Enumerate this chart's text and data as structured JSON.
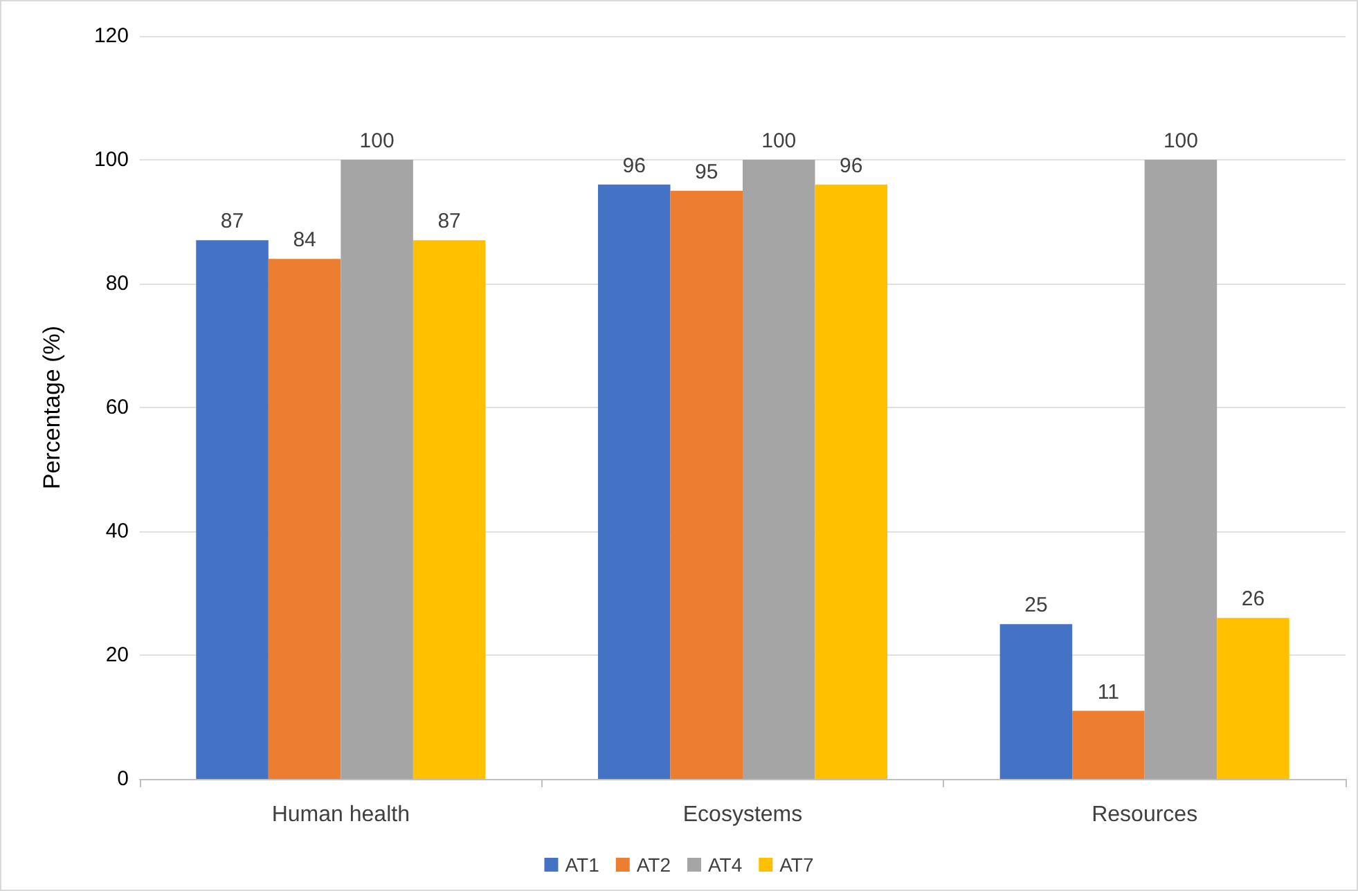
{
  "chart_data": {
    "type": "bar",
    "ylabel": "Percentage (%)",
    "categories": [
      "Human health",
      "Ecosystems",
      "Resources"
    ],
    "series": [
      {
        "name": "AT1",
        "color": "#4472c4",
        "values": [
          87,
          96,
          25
        ]
      },
      {
        "name": "AT2",
        "color": "#ed7d31",
        "values": [
          84,
          95,
          11
        ]
      },
      {
        "name": "AT4",
        "color": "#a5a5a5",
        "values": [
          100,
          100,
          100
        ]
      },
      {
        "name": "AT7",
        "color": "#ffc000",
        "values": [
          87,
          96,
          26
        ]
      }
    ],
    "ylim": [
      0,
      120
    ],
    "yticks": [
      0,
      20,
      40,
      60,
      80,
      100,
      120
    ],
    "grid": "y",
    "legend": "bottom",
    "data_labels": true
  }
}
